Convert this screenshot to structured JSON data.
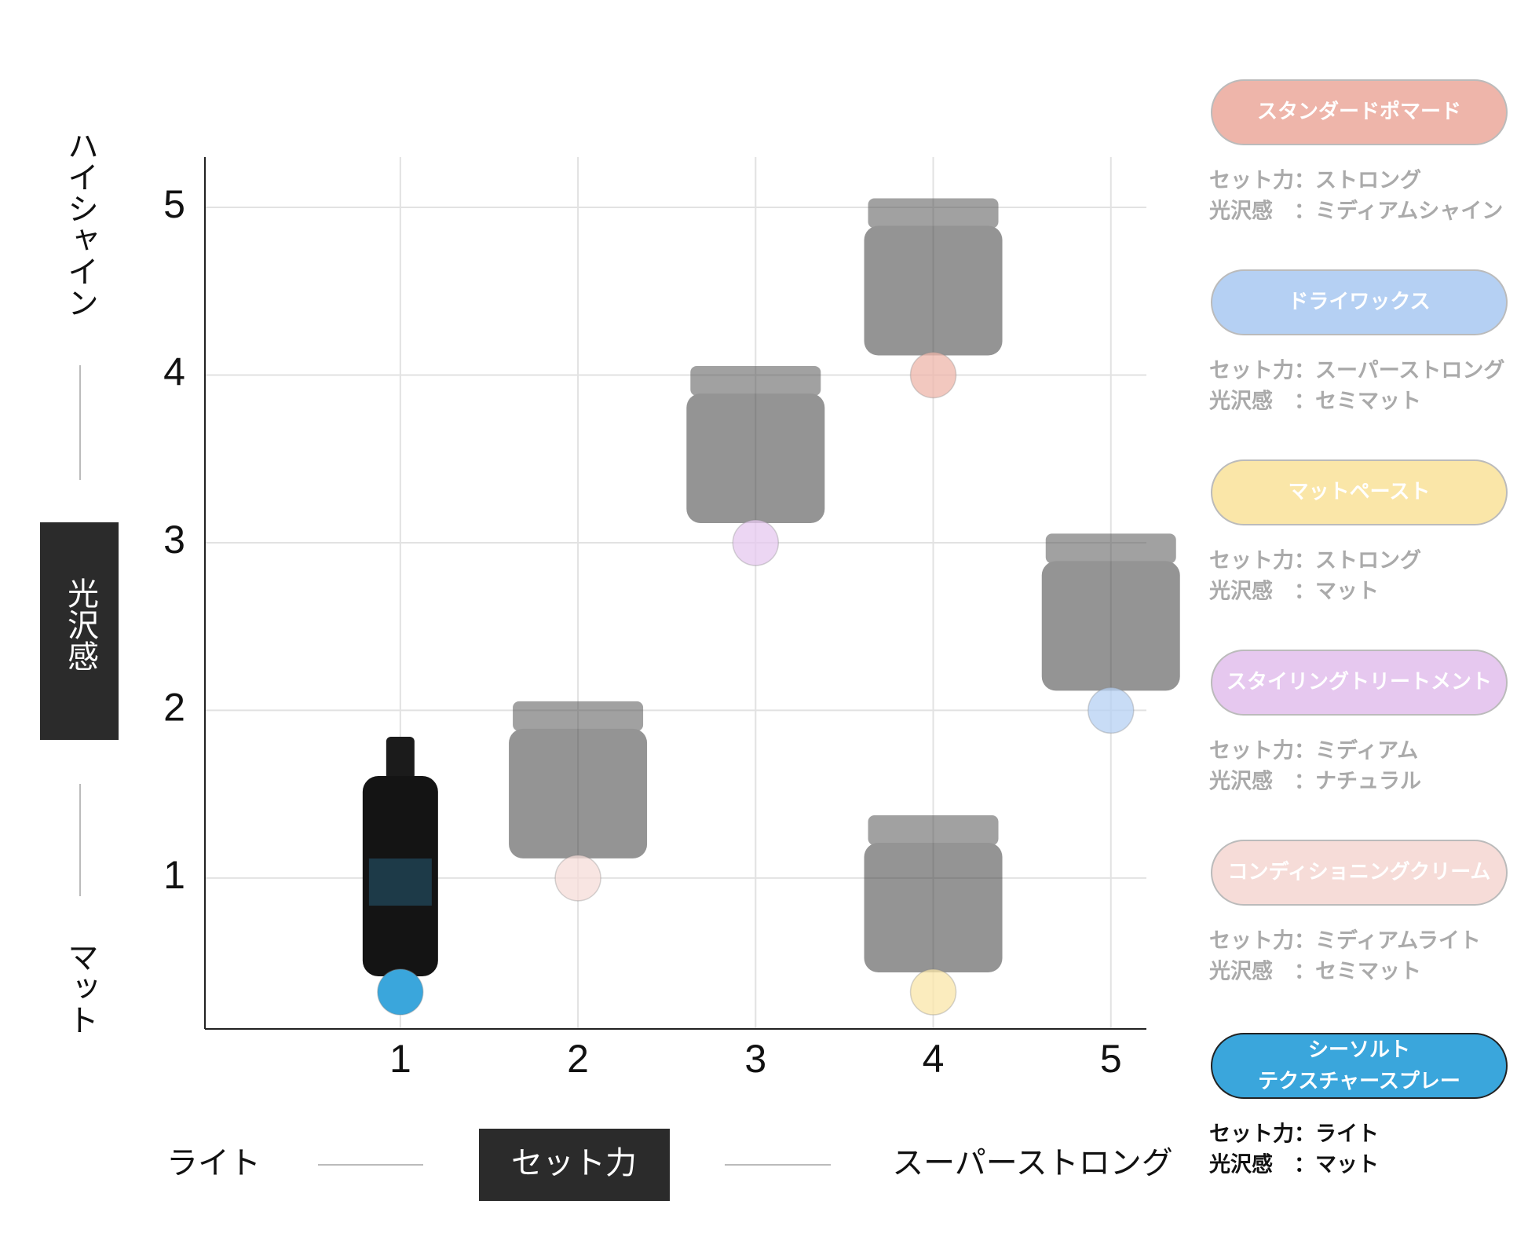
{
  "chart_data": {
    "type": "scatter",
    "y_axis_top": "ハイシャイン",
    "y_axis_title": "光沢感",
    "y_axis_bottom": "マット",
    "x_axis_left": "ライト",
    "x_axis_title": "セット力",
    "x_axis_right": "スーパーストロング",
    "xlim": [
      -0.1,
      5.2
    ],
    "xticks": [
      1,
      2,
      3,
      4,
      5
    ],
    "ylim": [
      0.1,
      5.3
    ],
    "yticks": [
      1,
      2,
      3,
      4,
      5
    ],
    "grid": true,
    "series": [
      {
        "name": "スタンダードポマード",
        "color": "#eeb5aa",
        "x": [
          4
        ],
        "values": [
          4
        ],
        "set_label": "セット力：ストロング",
        "gloss_label": "光沢感　：ミディアムシャイン",
        "selected": false
      },
      {
        "name": "ドライワックス",
        "color": "#b5d0f3",
        "x": [
          5
        ],
        "values": [
          2
        ],
        "set_label": "セット力：スーパーストロング",
        "gloss_label": "光沢感　：セミマット",
        "selected": false
      },
      {
        "name": "マットペースト",
        "color": "#fae6a8",
        "x": [
          4
        ],
        "values": [
          0.32
        ],
        "set_label": "セット力：ストロング",
        "gloss_label": "光沢感　：マット",
        "selected": false
      },
      {
        "name": "スタイリングトリートメント",
        "color": "#e6c8ef",
        "x": [
          3
        ],
        "values": [
          3
        ],
        "set_label": "セット力：ミディアム",
        "gloss_label": "光沢感　：ナチュラル",
        "selected": false
      },
      {
        "name": "コンディショニングクリーム",
        "color": "#f6dcd8",
        "x": [
          2
        ],
        "values": [
          1
        ],
        "set_label": "セット力：ミディアムライト",
        "gloss_label": "光沢感　：セミマット",
        "selected": false
      },
      {
        "name": "シーソルト\nテクスチャースプレー",
        "color": "#3aa6dc",
        "x": [
          1
        ],
        "values": [
          0.32
        ],
        "set_label": "セット力：ライト",
        "gloss_label": "光沢感　：マット",
        "selected": true
      }
    ]
  }
}
